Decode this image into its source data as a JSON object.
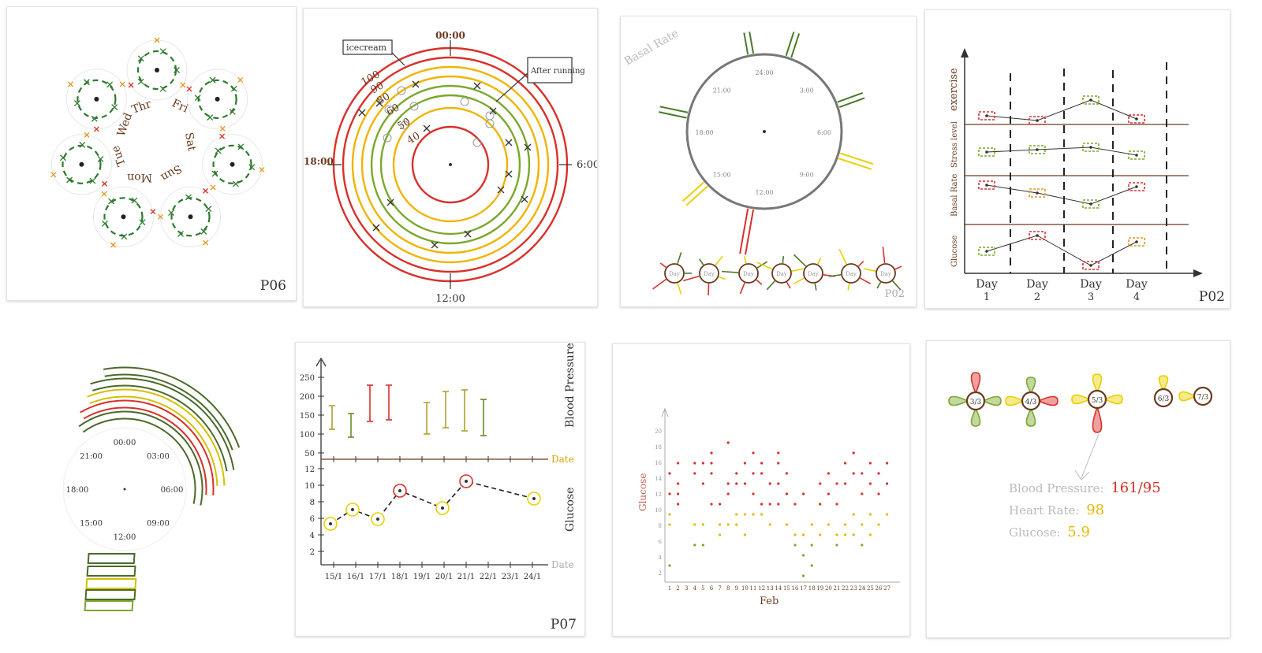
{
  "sketches": {
    "s1": {
      "participant": "P06",
      "days": [
        "Thr",
        "Fri",
        "Sat",
        "Sun",
        "Mon",
        "Tue",
        "Wed"
      ]
    },
    "s2": {
      "labels": {
        "top": "00:00",
        "right": "6:00",
        "bottom": "12:00",
        "left": "18:00"
      },
      "callouts": [
        "icecream",
        "After running"
      ],
      "ring_labels": [
        "100",
        "90",
        "80",
        "60",
        "50",
        "40"
      ],
      "colors": [
        "#d9302a",
        "#d9302a",
        "#f0b400",
        "#f0b400",
        "#7aa82c",
        "#7aa82c",
        "#f0b400",
        "#d9302a"
      ]
    },
    "s3": {
      "title": "Basal Rate",
      "clock_labels": [
        "24:00",
        "3:00",
        "6:00",
        "9:00",
        "12:00",
        "15:00",
        "18:00",
        "21:00"
      ],
      "days": [
        "Day",
        "Day",
        "Day",
        "Day",
        "Day",
        "Day",
        "Day"
      ],
      "participant": "P02"
    },
    "s4": {
      "rows": [
        "exercise",
        "Stress level",
        "Basal Rate",
        "Glucose"
      ],
      "days": [
        {
          "label": "Day",
          "num": "1"
        },
        {
          "label": "Day",
          "num": "2"
        },
        {
          "label": "Day",
          "num": "3"
        },
        {
          "label": "Day",
          "num": "4"
        }
      ],
      "participant": "P02"
    },
    "s5": {
      "clock_labels": [
        "00:00",
        "03:00",
        "06:00",
        "09:00",
        "12:00",
        "15:00",
        "18:00",
        "21:00"
      ]
    },
    "s6": {
      "y_top": [
        "250",
        "200",
        "150",
        "100",
        "50"
      ],
      "y_bottom": [
        "12",
        "10",
        "8",
        "6",
        "4",
        "2"
      ],
      "x_labels": [
        "15/1",
        "16/1",
        "17/1",
        "18/1",
        "19/1",
        "20/1",
        "21/1",
        "22/1",
        "23/1",
        "24/1"
      ],
      "top_title": "Blood Pressure",
      "bottom_title": "Glucose",
      "axis_end": [
        "Date",
        "Date"
      ],
      "participant": "P07"
    },
    "s7": {
      "y_label": "Glucose",
      "y_ticks": [
        "20",
        "18",
        "16",
        "14",
        "12",
        "10",
        "8",
        "6",
        "4",
        "2"
      ],
      "x_label": "Feb",
      "x_ticks": [
        "1",
        "2",
        "3",
        "4",
        "5",
        "6",
        "7",
        "8",
        "9",
        "10",
        "11",
        "12",
        "13",
        "14",
        "15",
        "16",
        "17",
        "18",
        "19",
        "20",
        "21",
        "22",
        "23",
        "24",
        "25",
        "26",
        "27"
      ]
    },
    "s8": {
      "dates": [
        "3/3",
        "4/3",
        "5/3",
        "6/3",
        "7/3"
      ],
      "vitals": [
        {
          "label": "Blood Pressure:",
          "value": "161/95",
          "color": "#d9302a"
        },
        {
          "label": "Heart Rate:",
          "value": "98",
          "color": "#e8b800"
        },
        {
          "label": "Glucose:",
          "value": "5.9",
          "color": "#e8b800"
        }
      ]
    }
  }
}
